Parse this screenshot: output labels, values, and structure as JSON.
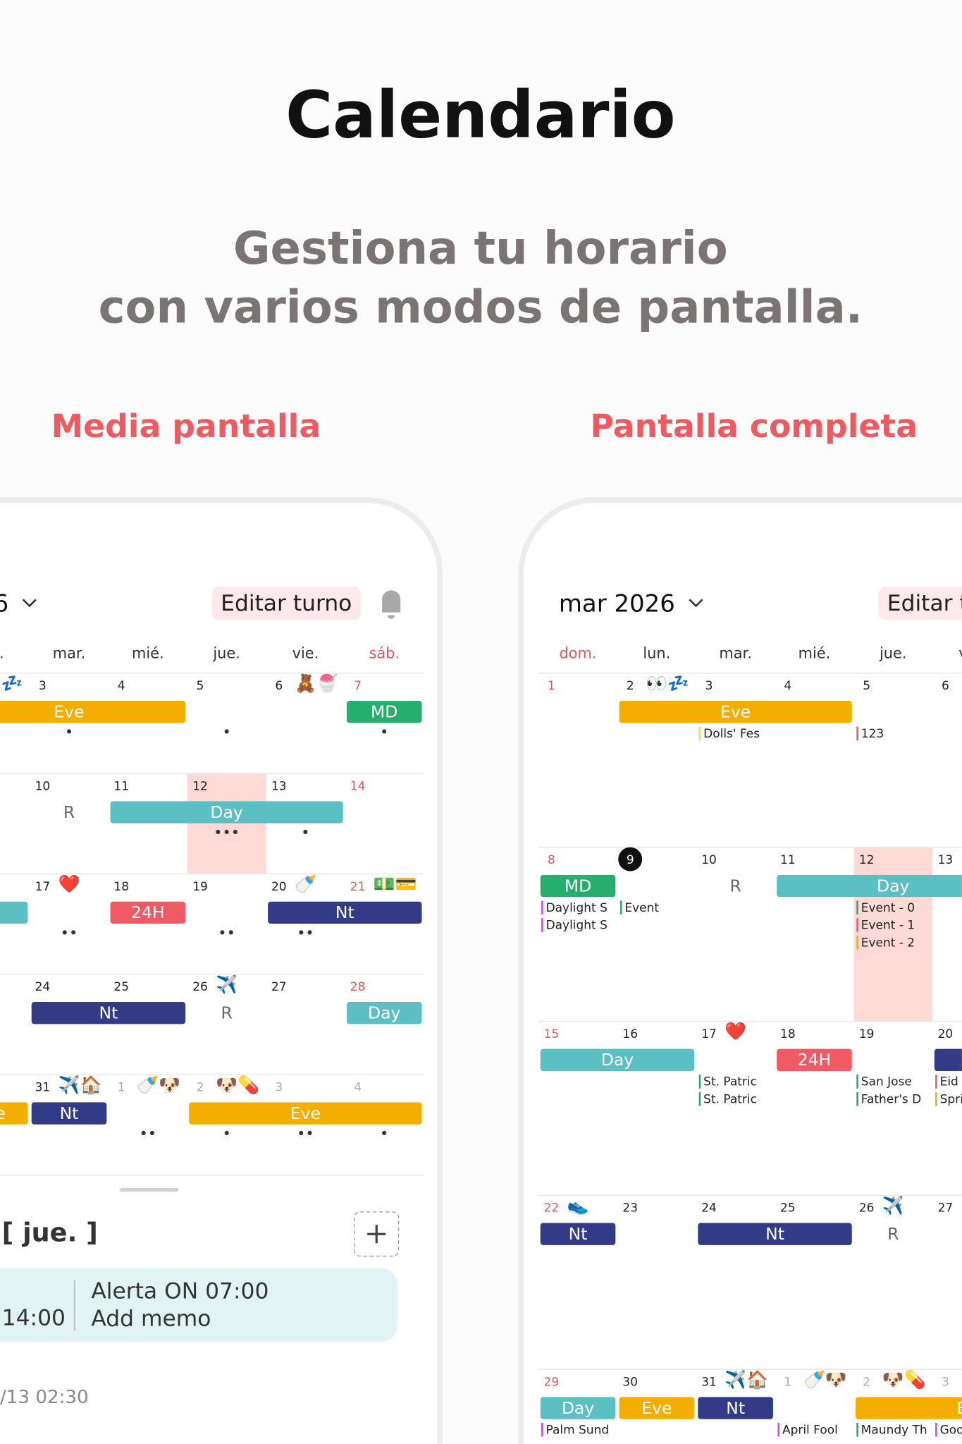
{
  "header": {
    "title": "Calendario",
    "subtitle": [
      "Gestiona tu horario",
      "con varios modos de pantalla."
    ]
  },
  "modes": [
    "Media pantalla",
    "Pantalla completa"
  ],
  "calendar": {
    "month": "mar 2026",
    "edit_button": "Editar turno",
    "weekdays": [
      "dom.",
      "lun.",
      "mar.",
      "mié.",
      "jue.",
      "vie.",
      "sáb."
    ],
    "weeks": [
      [
        {
          "day": "1"
        },
        {
          "day": "2",
          "emoji": "👀💤",
          "bar": {
            "label": "Eve",
            "color": "#f4ae00",
            "end": "4"
          }
        },
        {
          "day": "3",
          "dots": "•",
          "notes": [
            {
              "text": "Dolls' Fes",
              "color": "#f2d75a"
            }
          ]
        },
        {
          "day": "4"
        },
        {
          "day": "5",
          "dots": "•",
          "notes": [
            {
              "text": "123",
              "color": "#ef5a64"
            }
          ]
        },
        {
          "day": "6",
          "emoji": "🧸🍧"
        },
        {
          "day": "7",
          "dots": "•",
          "bar": {
            "label": "MD",
            "color": "#27ae6e",
            "end": "7"
          }
        }
      ],
      [
        {
          "day": "8",
          "bar": {
            "label": "MD",
            "color": "#27ae6e",
            "end": "8"
          },
          "notes": [
            {
              "text": "Daylight S",
              "color": "#c94de0"
            },
            {
              "text": "Daylight S",
              "color": "#c94de0"
            }
          ]
        },
        {
          "day": "9",
          "today": true,
          "notes": [
            {
              "text": "Event",
              "color": "#2daa6a"
            }
          ]
        },
        {
          "day": "10",
          "mark": "R"
        },
        {
          "day": "11",
          "bar": {
            "label": "Day",
            "color": "#5bbfc4",
            "end": "13"
          }
        },
        {
          "day": "12",
          "highlight": true,
          "dots": "•••",
          "notes": [
            {
              "text": "Event - 0",
              "color": "#2daa6a"
            },
            {
              "text": "Event - 1",
              "color": "#ef5a64"
            },
            {
              "text": "Event - 2",
              "color": "#f4ae00"
            }
          ]
        },
        {
          "day": "13",
          "dots": "•"
        },
        {
          "day": "14"
        }
      ],
      [
        {
          "day": "15",
          "bar": {
            "label": "Day",
            "color": "#5bbfc4",
            "end": "16"
          }
        },
        {
          "day": "16"
        },
        {
          "day": "17",
          "emoji": "❤️",
          "dots": "••",
          "notes": [
            {
              "text": "St. Patric",
              "color": "#2daa6a"
            },
            {
              "text": "St. Patric",
              "color": "#2daa6a"
            }
          ]
        },
        {
          "day": "18",
          "bar": {
            "label": "24H",
            "color": "#ef5a64",
            "end": "18"
          }
        },
        {
          "day": "19",
          "dots": "••",
          "notes": [
            {
              "text": "San Jose",
              "color": "#2daa6a"
            },
            {
              "text": "Father's D",
              "color": "#2daa6a"
            }
          ]
        },
        {
          "day": "20",
          "emoji": "🍼",
          "dots": "••",
          "bar": {
            "label": "Nt",
            "color": "#323b85",
            "end": "21"
          },
          "notes": [
            {
              "text": "Eid a",
              "color": "#ef5a64"
            },
            {
              "text": "Spri",
              "color": "#f4ae00"
            }
          ]
        },
        {
          "day": "21",
          "emoji": "💵💳"
        }
      ],
      [
        {
          "day": "22",
          "emoji": "👟",
          "bar": {
            "label": "Nt",
            "color": "#323b85",
            "end": "22"
          }
        },
        {
          "day": "23"
        },
        {
          "day": "24",
          "bar": {
            "label": "Nt",
            "color": "#323b85",
            "end": "25"
          }
        },
        {
          "day": "25"
        },
        {
          "day": "26",
          "emoji": "✈️",
          "mark": "R"
        },
        {
          "day": "27"
        },
        {
          "day": "28",
          "bar": {
            "label": "Day",
            "color": "#5bbfc4",
            "end": "28"
          }
        }
      ],
      [
        {
          "day": "29",
          "bar": {
            "label": "Day",
            "color": "#5bbfc4",
            "end": "29"
          },
          "notes": [
            {
              "text": "Palm Sund",
              "color": "#c94de0"
            }
          ]
        },
        {
          "day": "30",
          "bar": {
            "label": "Eve",
            "color": "#f4ae00",
            "end": "30"
          }
        },
        {
          "day": "31",
          "emoji": "✈️🏠",
          "bar": {
            "label": "Nt",
            "color": "#323b85",
            "end": "31"
          }
        },
        {
          "day": "1",
          "muted": true,
          "emoji": "🍼🐶",
          "dots": "••",
          "notes": [
            {
              "text": "April Fool",
              "color": "#c94de0"
            }
          ]
        },
        {
          "day": "2",
          "muted": true,
          "emoji": "🐶💊",
          "dots": "•",
          "bar": {
            "label": "Eve",
            "color": "#f4ae00",
            "end": "4"
          },
          "notes": [
            {
              "text": "Maundy Th",
              "color": "#2daa6a"
            }
          ]
        },
        {
          "day": "3",
          "muted": true,
          "dots": "••",
          "notes": [
            {
              "text": "Goo",
              "color": "#c94de0"
            }
          ]
        },
        {
          "day": "4",
          "muted": true,
          "dots": "•"
        }
      ]
    ]
  },
  "half_screen_panel": {
    "date": "[ jue. ]",
    "time": "14:00",
    "alert": "Alerta ON 07:00",
    "memo": "Add memo",
    "footer": "/13 02:30"
  }
}
